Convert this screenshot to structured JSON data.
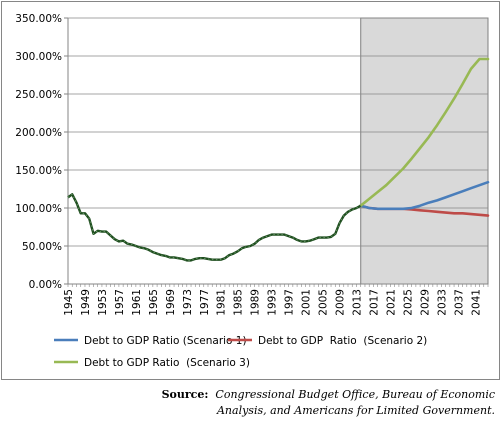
{
  "chart_data": {
    "type": "line",
    "title": "",
    "xlabel": "",
    "ylabel": "",
    "ylim": [
      0,
      350
    ],
    "xlim": [
      1945,
      2044
    ],
    "y_ticks": [
      0,
      50,
      100,
      150,
      200,
      250,
      300,
      350
    ],
    "y_tick_labels": [
      "0.00%",
      "50.00%",
      "100.00%",
      "150.00%",
      "200.00%",
      "250.00%",
      "300.00%",
      "350.00%"
    ],
    "x_tick_labels": [
      "1945",
      "1949",
      "1953",
      "1957",
      "1961",
      "1965",
      "1969",
      "1973",
      "1977",
      "1981",
      "1985",
      "1989",
      "1993",
      "1997",
      "2001",
      "2005",
      "2009",
      "2013",
      "2017",
      "2021",
      "2025",
      "2029",
      "2033",
      "2037",
      "2041"
    ],
    "projection_shading_start": 2014,
    "grid": "horizontal",
    "legend_position": "bottom",
    "historical": {
      "color": "#1f4e1f",
      "x": [
        1945,
        1946,
        1947,
        1948,
        1949,
        1950,
        1951,
        1952,
        1953,
        1954,
        1955,
        1956,
        1957,
        1958,
        1959,
        1960,
        1961,
        1962,
        1963,
        1964,
        1965,
        1966,
        1967,
        1968,
        1969,
        1970,
        1971,
        1972,
        1973,
        1974,
        1975,
        1976,
        1977,
        1978,
        1979,
        1980,
        1981,
        1982,
        1983,
        1984,
        1985,
        1986,
        1987,
        1988,
        1989,
        1990,
        1991,
        1992,
        1993,
        1994,
        1995,
        1996,
        1997,
        1998,
        1999,
        2000,
        2001,
        2002,
        2003,
        2004,
        2005,
        2006,
        2007,
        2008,
        2009,
        2010,
        2011,
        2012,
        2013,
        2014
      ],
      "y": [
        114,
        118,
        107,
        93,
        93,
        86,
        66,
        70,
        69,
        69,
        64,
        59,
        56,
        57,
        53,
        52,
        50,
        48,
        47,
        45,
        42,
        40,
        38,
        37,
        35,
        35,
        34,
        33,
        31,
        31,
        33,
        34,
        34,
        33,
        32,
        32,
        32,
        34,
        38,
        40,
        43,
        47,
        49,
        50,
        53,
        58,
        61,
        63,
        65,
        65,
        65,
        65,
        63,
        61,
        58,
        56,
        56,
        57,
        59,
        61,
        61,
        61,
        62,
        66,
        80,
        90,
        95,
        98,
        100,
        103
      ]
    },
    "series": [
      {
        "name": "Debt to GDP Ratio (Scenario 1)",
        "color": "#4a7ebb",
        "x": [
          2014,
          2016,
          2018,
          2020,
          2022,
          2024,
          2026,
          2028,
          2030,
          2032,
          2034,
          2036,
          2038,
          2040,
          2042,
          2044
        ],
        "y": [
          103,
          100,
          99,
          99,
          99,
          99,
          100,
          103,
          107,
          110,
          114,
          118,
          122,
          126,
          130,
          134
        ]
      },
      {
        "name": "Debt to GDP  Ratio  (Scenario 2)",
        "color": "#be4b48",
        "x": [
          2014,
          2016,
          2018,
          2020,
          2022,
          2024,
          2026,
          2028,
          2030,
          2032,
          2034,
          2036,
          2038,
          2040,
          2042,
          2044
        ],
        "y": [
          103,
          100,
          99,
          99,
          99,
          99,
          98,
          97,
          96,
          95,
          94,
          93,
          93,
          92,
          91,
          90
        ]
      },
      {
        "name": "Debt to GDP Ratio  (Scenario 3)",
        "color": "#98b954",
        "x": [
          2014,
          2016,
          2018,
          2020,
          2022,
          2024,
          2026,
          2028,
          2030,
          2032,
          2034,
          2036,
          2038,
          2040,
          2042,
          2044
        ],
        "y": [
          103,
          112,
          121,
          130,
          141,
          152,
          165,
          179,
          193,
          209,
          226,
          244,
          263,
          283,
          296,
          296
        ]
      }
    ]
  },
  "source": {
    "label": "Source:",
    "line1": "Congressional Budget Office, Bureau of Economic",
    "line2": "Analysis, and Americans for Limited Government."
  }
}
